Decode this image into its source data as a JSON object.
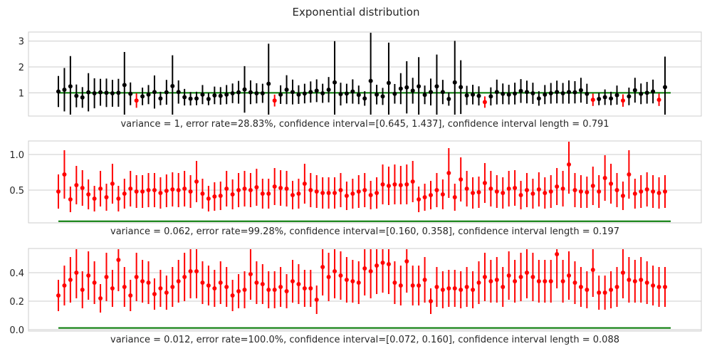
{
  "figure": {
    "title": "Exponential distribution"
  },
  "colors": {
    "inside": "#000000",
    "outside": "#ff0000",
    "true_line": "#007700",
    "grid": "#cccccc",
    "frame": "#cccccc"
  },
  "chart_data": [
    {
      "type": "scatter",
      "title": "",
      "xlabel": "variance = 1, error rate=28.83%, confidence interval=[0.645, 1.437], confidence interval length = 0.791",
      "ylabel": "",
      "true_value": 1,
      "ylim": [
        0.1,
        3.35
      ],
      "yticks": [
        1,
        2,
        3
      ],
      "ytick_labels": [
        "1",
        "2",
        "3"
      ],
      "grid": true,
      "estimates": [
        1.05,
        1.12,
        1.25,
        0.88,
        0.82,
        1.02,
        0.98,
        1.02,
        1.0,
        0.98,
        1.0,
        1.3,
        0.96,
        0.7,
        0.86,
        0.93,
        1.03,
        0.78,
        1.02,
        1.26,
        1.03,
        0.83,
        0.77,
        0.78,
        0.93,
        0.76,
        0.9,
        0.88,
        0.93,
        0.98,
        1.02,
        1.13,
        1.02,
        0.98,
        0.98,
        1.35,
        0.7,
        0.93,
        1.12,
        1.03,
        0.93,
        0.97,
        1.03,
        1.08,
        0.98,
        1.12,
        1.4,
        0.95,
        0.97,
        1.05,
        0.92,
        0.78,
        1.46,
        0.93,
        0.86,
        1.38,
        0.96,
        1.16,
        1.21,
        1.08,
        1.25,
        0.92,
        1.03,
        1.25,
        1.03,
        0.76,
        1.4,
        1.22,
        0.9,
        0.93,
        0.88,
        0.64,
        0.86,
        1.03,
        0.96,
        0.93,
        0.97,
        1.07,
        1.03,
        0.98,
        0.78,
        0.93,
        0.98,
        1.03,
        0.98,
        1.03,
        1.02,
        1.1,
        0.96,
        0.73,
        0.76,
        0.83,
        0.78,
        0.91,
        0.7,
        0.86,
        1.1,
        0.96,
        1.0,
        1.05,
        0.73,
        1.22
      ],
      "half_widths": [
        0.6,
        0.84,
        1.17,
        0.44,
        0.4,
        0.74,
        0.58,
        0.52,
        0.55,
        0.52,
        0.54,
        1.28,
        0.44,
        0.28,
        0.34,
        0.37,
        0.64,
        0.26,
        0.48,
        1.19,
        0.45,
        0.32,
        0.26,
        0.26,
        0.37,
        0.24,
        0.34,
        0.34,
        0.37,
        0.38,
        0.44,
        0.9,
        0.46,
        0.39,
        0.37,
        1.55,
        0.23,
        0.36,
        0.56,
        0.48,
        0.36,
        0.38,
        0.41,
        0.44,
        0.37,
        0.49,
        1.6,
        0.44,
        0.38,
        0.47,
        0.36,
        0.28,
        1.9,
        0.38,
        0.33,
        1.56,
        0.38,
        0.6,
        1.01,
        0.5,
        1.13,
        0.36,
        0.52,
        1.23,
        0.47,
        0.26,
        1.61,
        1.04,
        0.37,
        0.38,
        0.37,
        0.22,
        0.35,
        0.48,
        0.4,
        0.38,
        0.42,
        0.46,
        0.44,
        0.41,
        0.28,
        0.37,
        0.4,
        0.44,
        0.4,
        0.45,
        0.43,
        0.48,
        0.39,
        0.24,
        0.24,
        0.3,
        0.26,
        0.37,
        0.24,
        0.34,
        0.48,
        0.4,
        0.42,
        0.46,
        0.24,
        1.18
      ]
    },
    {
      "type": "scatter",
      "title": "",
      "xlabel": "variance = 0.062, error rate=99.28%, confidence interval=[0.160, 0.358], confidence interval length = 0.197",
      "ylabel": "",
      "true_value": 0.062,
      "ylim": [
        0.04,
        1.19
      ],
      "yticks": [
        0.5,
        1.0
      ],
      "ytick_labels": [
        "0.5",
        "1.0"
      ],
      "grid": true,
      "estimates": [
        0.48,
        0.72,
        0.37,
        0.57,
        0.53,
        0.44,
        0.38,
        0.52,
        0.4,
        0.59,
        0.38,
        0.45,
        0.52,
        0.48,
        0.48,
        0.5,
        0.5,
        0.46,
        0.49,
        0.51,
        0.5,
        0.52,
        0.48,
        0.62,
        0.45,
        0.38,
        0.41,
        0.42,
        0.52,
        0.44,
        0.5,
        0.52,
        0.5,
        0.54,
        0.45,
        0.45,
        0.55,
        0.53,
        0.52,
        0.43,
        0.45,
        0.59,
        0.5,
        0.48,
        0.46,
        0.46,
        0.46,
        0.5,
        0.42,
        0.45,
        0.48,
        0.5,
        0.43,
        0.46,
        0.58,
        0.56,
        0.58,
        0.57,
        0.58,
        0.62,
        0.37,
        0.4,
        0.43,
        0.5,
        0.44,
        0.74,
        0.4,
        0.65,
        0.52,
        0.46,
        0.47,
        0.6,
        0.52,
        0.48,
        0.46,
        0.52,
        0.53,
        0.43,
        0.5,
        0.45,
        0.51,
        0.46,
        0.48,
        0.55,
        0.52,
        0.86,
        0.5,
        0.48,
        0.47,
        0.56,
        0.48,
        0.67,
        0.59,
        0.5,
        0.42,
        0.72,
        0.45,
        0.48,
        0.51,
        0.48,
        0.46,
        0.48
      ],
      "half_widths": [
        0.24,
        0.34,
        0.18,
        0.27,
        0.25,
        0.21,
        0.18,
        0.25,
        0.19,
        0.28,
        0.18,
        0.21,
        0.25,
        0.23,
        0.23,
        0.24,
        0.24,
        0.22,
        0.23,
        0.24,
        0.24,
        0.25,
        0.23,
        0.29,
        0.21,
        0.18,
        0.2,
        0.2,
        0.25,
        0.21,
        0.24,
        0.25,
        0.24,
        0.26,
        0.21,
        0.21,
        0.26,
        0.25,
        0.25,
        0.2,
        0.21,
        0.28,
        0.24,
        0.23,
        0.22,
        0.22,
        0.22,
        0.24,
        0.2,
        0.21,
        0.23,
        0.24,
        0.2,
        0.22,
        0.28,
        0.27,
        0.28,
        0.27,
        0.28,
        0.29,
        0.18,
        0.19,
        0.2,
        0.24,
        0.21,
        0.35,
        0.19,
        0.31,
        0.25,
        0.22,
        0.22,
        0.28,
        0.25,
        0.23,
        0.22,
        0.25,
        0.25,
        0.2,
        0.24,
        0.21,
        0.24,
        0.22,
        0.23,
        0.26,
        0.25,
        0.41,
        0.24,
        0.23,
        0.22,
        0.27,
        0.23,
        0.32,
        0.28,
        0.24,
        0.2,
        0.34,
        0.21,
        0.23,
        0.24,
        0.23,
        0.22,
        0.23
      ]
    },
    {
      "type": "scatter",
      "title": "",
      "xlabel": "variance = 0.012, error rate=100.0%, confidence interval=[0.072, 0.160], confidence interval length = 0.088",
      "ylabel": "",
      "true_value": 0.012,
      "ylim": [
        -0.01,
        0.57
      ],
      "yticks": [
        0.0,
        0.2,
        0.4
      ],
      "ytick_labels": [
        "0.0",
        "0.2",
        "0.4"
      ],
      "grid": true,
      "estimates": [
        0.24,
        0.31,
        0.35,
        0.4,
        0.28,
        0.38,
        0.33,
        0.22,
        0.37,
        0.29,
        0.49,
        0.3,
        0.24,
        0.37,
        0.34,
        0.33,
        0.25,
        0.29,
        0.26,
        0.3,
        0.34,
        0.37,
        0.41,
        0.41,
        0.33,
        0.31,
        0.29,
        0.33,
        0.3,
        0.24,
        0.27,
        0.28,
        0.39,
        0.33,
        0.32,
        0.28,
        0.28,
        0.3,
        0.27,
        0.34,
        0.32,
        0.29,
        0.29,
        0.21,
        0.44,
        0.37,
        0.41,
        0.38,
        0.35,
        0.34,
        0.33,
        0.43,
        0.41,
        0.45,
        0.47,
        0.46,
        0.33,
        0.31,
        0.48,
        0.31,
        0.31,
        0.35,
        0.2,
        0.3,
        0.28,
        0.29,
        0.29,
        0.28,
        0.3,
        0.28,
        0.33,
        0.37,
        0.34,
        0.35,
        0.3,
        0.38,
        0.34,
        0.37,
        0.4,
        0.37,
        0.34,
        0.34,
        0.34,
        0.53,
        0.34,
        0.38,
        0.33,
        0.3,
        0.28,
        0.42,
        0.26,
        0.26,
        0.28,
        0.3,
        0.4,
        0.35,
        0.34,
        0.35,
        0.33,
        0.31,
        0.3,
        0.3
      ],
      "half_widths": [
        0.11,
        0.14,
        0.16,
        0.18,
        0.13,
        0.17,
        0.15,
        0.1,
        0.17,
        0.13,
        0.22,
        0.14,
        0.11,
        0.17,
        0.15,
        0.15,
        0.11,
        0.13,
        0.12,
        0.14,
        0.15,
        0.17,
        0.19,
        0.19,
        0.15,
        0.14,
        0.13,
        0.15,
        0.14,
        0.11,
        0.12,
        0.13,
        0.18,
        0.15,
        0.14,
        0.13,
        0.13,
        0.14,
        0.12,
        0.15,
        0.14,
        0.13,
        0.13,
        0.1,
        0.2,
        0.17,
        0.19,
        0.17,
        0.16,
        0.15,
        0.15,
        0.19,
        0.19,
        0.2,
        0.21,
        0.21,
        0.15,
        0.14,
        0.22,
        0.14,
        0.14,
        0.16,
        0.09,
        0.14,
        0.13,
        0.13,
        0.13,
        0.13,
        0.14,
        0.13,
        0.15,
        0.17,
        0.15,
        0.16,
        0.14,
        0.17,
        0.15,
        0.17,
        0.18,
        0.17,
        0.15,
        0.15,
        0.15,
        0.24,
        0.15,
        0.17,
        0.15,
        0.14,
        0.13,
        0.19,
        0.12,
        0.12,
        0.13,
        0.14,
        0.18,
        0.16,
        0.15,
        0.16,
        0.15,
        0.14,
        0.14,
        0.14
      ]
    }
  ]
}
